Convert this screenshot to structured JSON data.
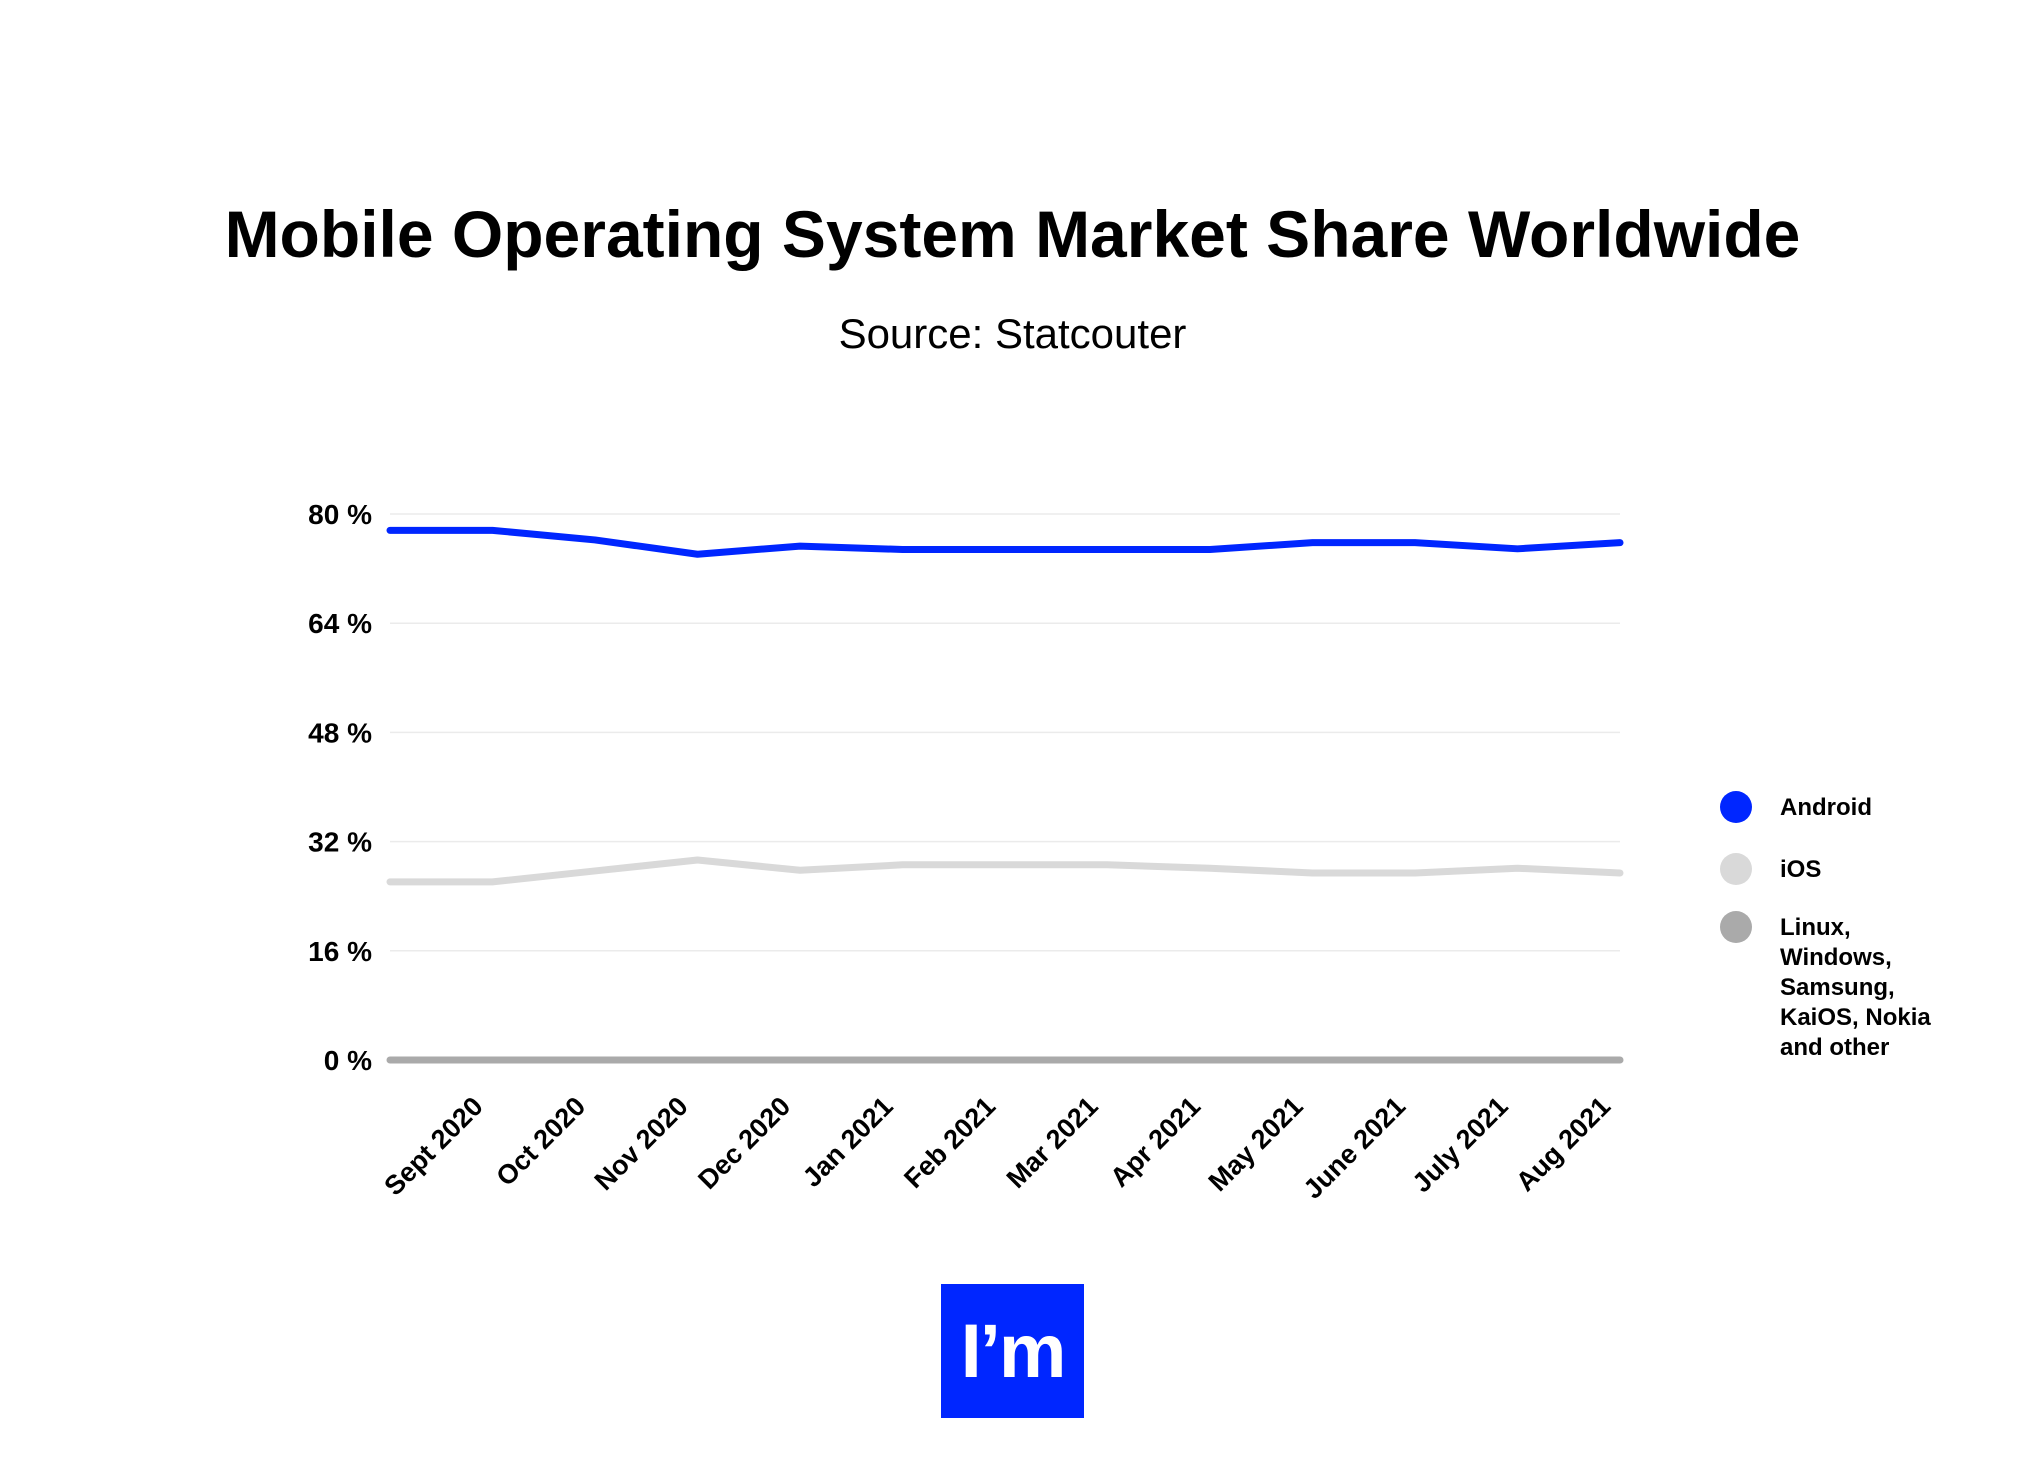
{
  "chart_data": {
    "type": "line",
    "title": "Mobile Operating System Market Share Worldwide",
    "subtitle": "Source: Statcouter",
    "xlabel": "",
    "ylabel": "",
    "categories": [
      "",
      "Sept 2020",
      "Oct 2020",
      "Nov 2020",
      "Dec 2020",
      "Jan 2021",
      "Feb 2021",
      "Mar 2021",
      "Apr 2021",
      "May 2021",
      "June 2021",
      "July 2021",
      "Aug 2021"
    ],
    "y_ticks": [
      "0 %",
      "16 %",
      "32 %",
      "48 %",
      "64 %",
      "80 %"
    ],
    "ylim": [
      0,
      80
    ],
    "grid": true,
    "legend_position": "right",
    "series": [
      {
        "name": "Android",
        "color": "#0026ff",
        "values": [
          77.6,
          77.6,
          76.2,
          74.1,
          75.3,
          74.8,
          74.8,
          74.8,
          74.8,
          75.8,
          75.8,
          74.9,
          75.8
        ]
      },
      {
        "name": "iOS",
        "color": "#d9d9d9",
        "values": [
          26.1,
          26.1,
          27.7,
          29.3,
          27.8,
          28.6,
          28.6,
          28.6,
          28.1,
          27.4,
          27.4,
          28.1,
          27.4
        ]
      },
      {
        "name": "Linux, Windows, Samsung, KaiOS, Nokia and other",
        "color": "#aaaaaa",
        "values": [
          0,
          0,
          0,
          0,
          0,
          0,
          0,
          0,
          0,
          0,
          0,
          0,
          0
        ]
      }
    ]
  },
  "logo": {
    "text": "I’m",
    "color": "#0026ff"
  }
}
